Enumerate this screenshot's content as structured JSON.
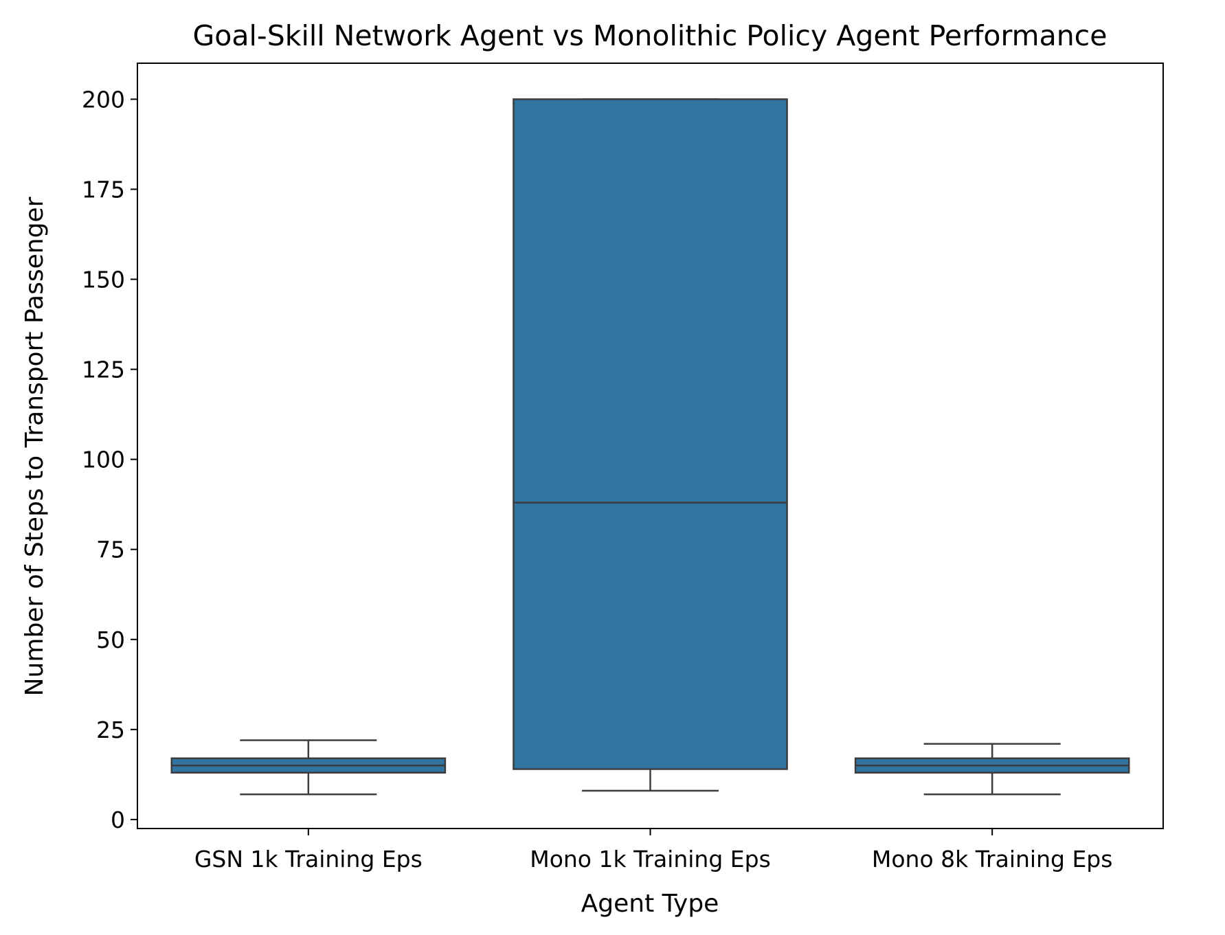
{
  "chart_data": {
    "type": "box",
    "title": "Goal-Skill Network Agent vs Monolithic Policy Agent Performance",
    "xlabel": "Agent Type",
    "ylabel": "Number of Steps to Transport Passenger",
    "ylim": [
      -2.5,
      210
    ],
    "yticks": [
      0,
      25,
      50,
      75,
      100,
      125,
      150,
      175,
      200
    ],
    "grid": false,
    "colors": {
      "box_fill": "#3274a1",
      "line": "#3c3c3c",
      "axes": "#000000"
    },
    "categories": [
      "GSN 1k Training Eps",
      "Mono 1k Training Eps",
      "Mono 8k Training Eps"
    ],
    "boxes": [
      {
        "category": "GSN 1k Training Eps",
        "whisker_low": 7,
        "q1": 13,
        "median": 15,
        "q3": 17,
        "whisker_high": 22
      },
      {
        "category": "Mono 1k Training Eps",
        "whisker_low": 8,
        "q1": 14,
        "median": 88,
        "q3": 200,
        "whisker_high": 200
      },
      {
        "category": "Mono 8k Training Eps",
        "whisker_low": 7,
        "q1": 13,
        "median": 15,
        "q3": 17,
        "whisker_high": 21
      }
    ]
  }
}
